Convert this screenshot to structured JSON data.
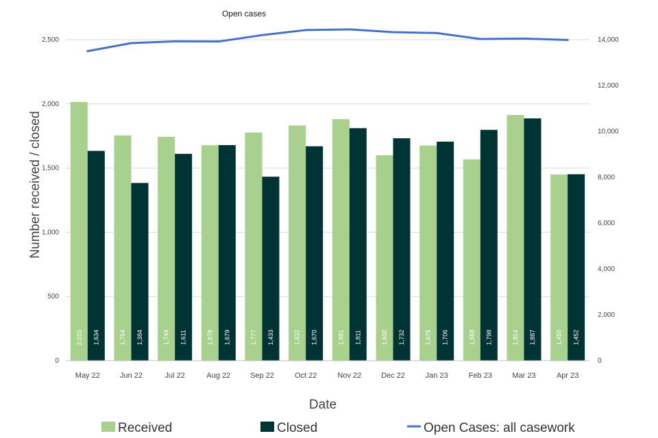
{
  "chart_data": {
    "type": "bar",
    "categories": [
      "May 22",
      "Jun 22",
      "Jul 22",
      "Aug 22",
      "Sep 22",
      "Oct 22",
      "Nov 22",
      "Dec 22",
      "Jan 23",
      "Feb 23",
      "Mar 23",
      "Apr 23"
    ],
    "series": [
      {
        "name": "Received",
        "type": "bar",
        "axis": "left",
        "color": "#a9d18e",
        "values": [
          2015,
          1754,
          1744,
          1678,
          1777,
          1832,
          1881,
          1600,
          1676,
          1568,
          1914,
          1450
        ],
        "labels": [
          "2,015",
          "1,754",
          "1,744",
          "1,678",
          "1,777",
          "1,832",
          "1,881",
          "1,600",
          "1,676",
          "1,568",
          "1,914",
          "1,450"
        ]
      },
      {
        "name": "Closed",
        "type": "bar",
        "axis": "left",
        "color": "#003333",
        "values": [
          1634,
          1384,
          1611,
          1679,
          1433,
          1670,
          1811,
          1732,
          1706,
          1798,
          1887,
          1452
        ],
        "labels": [
          "1,634",
          "1,384",
          "1,611",
          "1,679",
          "1,433",
          "1,670",
          "1,811",
          "1,732",
          "1,706",
          "1,798",
          "1,887",
          "1,452"
        ]
      },
      {
        "name": "Open Cases: all casework",
        "type": "line",
        "axis": "right",
        "color": "#4472c4",
        "values": [
          13500,
          13850,
          13930,
          13920,
          14200,
          14420,
          14450,
          14330,
          14290,
          14030,
          14050,
          13990
        ]
      }
    ],
    "line_title": "Open cases",
    "xlabel": "Date",
    "ylabel": "Number received / closed",
    "ylim": [
      0,
      2500
    ],
    "y2lim": [
      0,
      14000
    ],
    "yticks": [
      0,
      500,
      1000,
      1500,
      2000,
      2500
    ],
    "yticklabels": [
      "0",
      "500",
      "1,000",
      "1,500",
      "2,000",
      "2,500"
    ],
    "y2ticks": [
      0,
      2000,
      4000,
      6000,
      8000,
      10000,
      12000,
      14000
    ],
    "y2ticklabels": [
      "0",
      "2,000",
      "4,000",
      "6,000",
      "8,000",
      "10,000",
      "12,000",
      "14,000"
    ],
    "grid": true,
    "legend_position": "bottom"
  }
}
